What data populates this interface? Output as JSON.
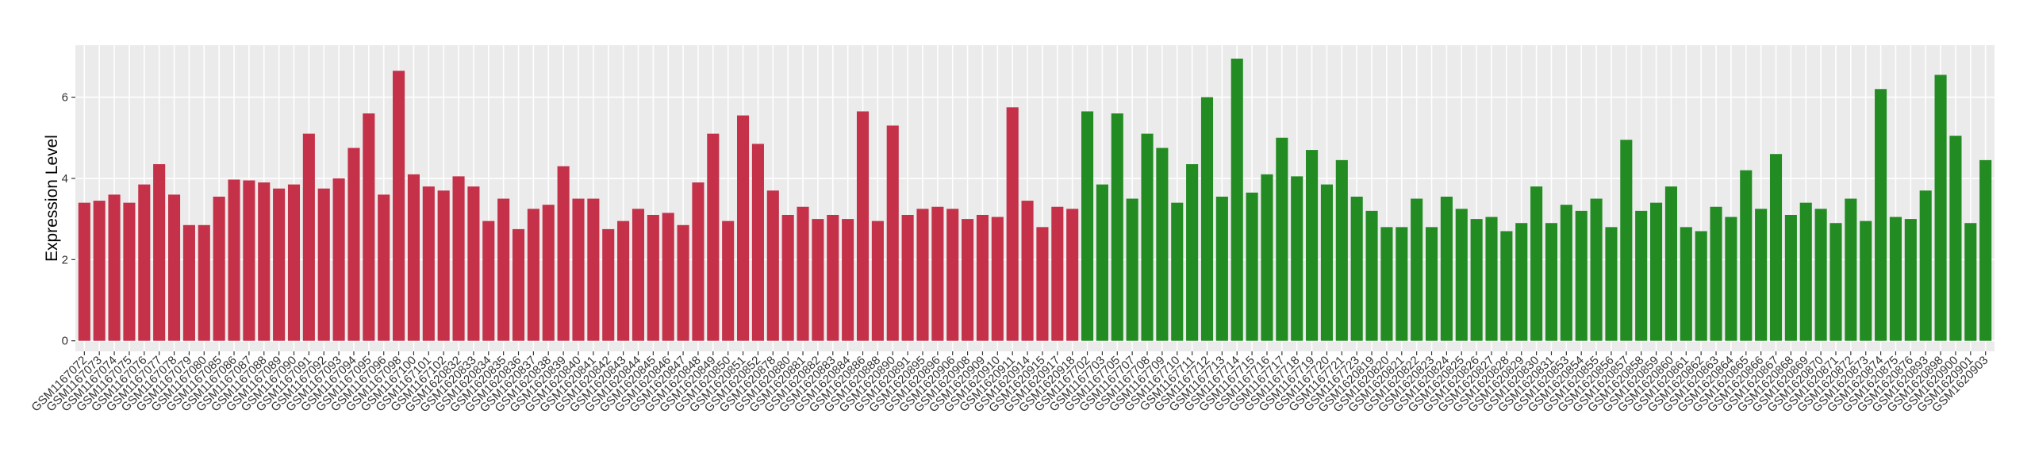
{
  "chart_data": {
    "type": "bar",
    "y_label": "Expression Level",
    "categories": [
      "GSM1167072",
      "GSM1167073",
      "GSM1167074",
      "GSM1167075",
      "GSM1167076",
      "GSM1167077",
      "GSM1167078",
      "GSM1167079",
      "GSM1167080",
      "GSM1167085",
      "GSM1167086",
      "GSM1167087",
      "GSM1167088",
      "GSM1167089",
      "GSM1167090",
      "GSM1167091",
      "GSM1167092",
      "GSM1167093",
      "GSM1167094",
      "GSM1167095",
      "GSM1167096",
      "GSM1167098",
      "GSM1167100",
      "GSM1167101",
      "GSM1167102",
      "GSM1620832",
      "GSM1620833",
      "GSM1620834",
      "GSM1620835",
      "GSM1620836",
      "GSM1620837",
      "GSM1620838",
      "GSM1620839",
      "GSM1620840",
      "GSM1620841",
      "GSM1620842",
      "GSM1620843",
      "GSM1620844",
      "GSM1620845",
      "GSM1620846",
      "GSM1620847",
      "GSM1620848",
      "GSM1620849",
      "GSM1620850",
      "GSM1620851",
      "GSM1620852",
      "GSM1620878",
      "GSM1620880",
      "GSM1620881",
      "GSM1620882",
      "GSM1620883",
      "GSM1620884",
      "GSM1620886",
      "GSM1620888",
      "GSM1620890",
      "GSM1620891",
      "GSM1620895",
      "GSM1620896",
      "GSM1620906",
      "GSM1620908",
      "GSM1620909",
      "GSM1620910",
      "GSM1620911",
      "GSM1620914",
      "GSM1620915",
      "GSM1620917",
      "GSM1620918",
      "GSM1167702",
      "GSM1167703",
      "GSM1167705",
      "GSM1167707",
      "GSM1167708",
      "GSM1167709",
      "GSM1167710",
      "GSM1167711",
      "GSM1167712",
      "GSM1167713",
      "GSM1167714",
      "GSM1167715",
      "GSM1167716",
      "GSM1167717",
      "GSM1167718",
      "GSM1167719",
      "GSM1167720",
      "GSM1167721",
      "GSM1167723",
      "GSM1620819",
      "GSM1620820",
      "GSM1620821",
      "GSM1620822",
      "GSM1620823",
      "GSM1620824",
      "GSM1620825",
      "GSM1620826",
      "GSM1620827",
      "GSM1620828",
      "GSM1620829",
      "GSM1620830",
      "GSM1620831",
      "GSM1620853",
      "GSM1620854",
      "GSM1620855",
      "GSM1620856",
      "GSM1620857",
      "GSM1620858",
      "GSM1620859",
      "GSM1620860",
      "GSM1620861",
      "GSM1620862",
      "GSM1620863",
      "GSM1620864",
      "GSM1620865",
      "GSM1620866",
      "GSM1620867",
      "GSM1620868",
      "GSM1620869",
      "GSM1620870",
      "GSM1620871",
      "GSM1620872",
      "GSM1620873",
      "GSM1620874",
      "GSM1620875",
      "GSM1620876",
      "GSM1620893",
      "GSM1620898",
      "GSM1620900",
      "GSM1620901",
      "GSM1620903"
    ],
    "values": [
      3.4,
      3.45,
      3.6,
      3.4,
      3.85,
      4.35,
      3.6,
      2.85,
      2.85,
      3.55,
      3.97,
      3.95,
      3.9,
      3.75,
      3.85,
      5.1,
      3.75,
      4.0,
      4.75,
      5.6,
      3.6,
      6.65,
      4.1,
      3.8,
      3.7,
      4.05,
      3.8,
      2.95,
      3.5,
      2.75,
      3.25,
      3.35,
      4.3,
      3.5,
      3.5,
      2.75,
      2.95,
      3.25,
      3.1,
      3.15,
      2.85,
      3.9,
      5.1,
      2.95,
      5.55,
      4.85,
      3.7,
      3.1,
      3.3,
      3.0,
      3.1,
      3.0,
      5.65,
      2.95,
      5.3,
      3.1,
      3.25,
      3.3,
      3.25,
      3.0,
      3.1,
      3.05,
      5.75,
      3.45,
      2.8,
      3.3,
      3.25,
      5.65,
      3.85,
      5.6,
      3.5,
      5.1,
      4.75,
      3.4,
      4.35,
      6.0,
      3.55,
      6.95,
      3.65,
      4.1,
      5.0,
      4.05,
      4.7,
      3.85,
      4.45,
      3.55,
      3.2,
      2.8,
      2.8,
      3.5,
      2.8,
      3.55,
      3.25,
      3.0,
      3.05,
      2.7,
      2.9,
      3.8,
      2.9,
      3.35,
      3.2,
      3.5,
      2.8,
      4.95,
      3.2,
      3.4,
      3.8,
      2.8,
      2.7,
      3.3,
      3.05,
      4.2,
      3.25,
      4.6,
      3.1,
      3.4,
      3.25,
      2.9,
      3.5,
      2.95,
      6.2,
      3.05,
      3.0,
      3.7,
      6.55,
      5.05,
      2.9,
      4.45
    ],
    "colors": [
      "#c43149",
      "#c43149",
      "#c43149",
      "#c43149",
      "#c43149",
      "#c43149",
      "#c43149",
      "#c43149",
      "#c43149",
      "#c43149",
      "#c43149",
      "#c43149",
      "#c43149",
      "#c43149",
      "#c43149",
      "#c43149",
      "#c43149",
      "#c43149",
      "#c43149",
      "#c43149",
      "#c43149",
      "#c43149",
      "#c43149",
      "#c43149",
      "#c43149",
      "#c43149",
      "#c43149",
      "#c43149",
      "#c43149",
      "#c43149",
      "#c43149",
      "#c43149",
      "#c43149",
      "#c43149",
      "#c43149",
      "#c43149",
      "#c43149",
      "#c43149",
      "#c43149",
      "#c43149",
      "#c43149",
      "#c43149",
      "#c43149",
      "#c43149",
      "#c43149",
      "#c43149",
      "#c43149",
      "#c43149",
      "#c43149",
      "#c43149",
      "#c43149",
      "#c43149",
      "#c43149",
      "#c43149",
      "#c43149",
      "#c43149",
      "#c43149",
      "#c43149",
      "#c43149",
      "#c43149",
      "#c43149",
      "#c43149",
      "#c43149",
      "#c43149",
      "#c43149",
      "#c43149",
      "#c43149",
      "#228b22",
      "#228b22",
      "#228b22",
      "#228b22",
      "#228b22",
      "#228b22",
      "#228b22",
      "#228b22",
      "#228b22",
      "#228b22",
      "#228b22",
      "#228b22",
      "#228b22",
      "#228b22",
      "#228b22",
      "#228b22",
      "#228b22",
      "#228b22",
      "#228b22",
      "#228b22",
      "#228b22",
      "#228b22",
      "#228b22",
      "#228b22",
      "#228b22",
      "#228b22",
      "#228b22",
      "#228b22",
      "#228b22",
      "#228b22",
      "#228b22",
      "#228b22",
      "#228b22",
      "#228b22",
      "#228b22",
      "#228b22",
      "#228b22",
      "#228b22",
      "#228b22",
      "#228b22",
      "#228b22",
      "#228b22",
      "#228b22",
      "#228b22",
      "#228b22",
      "#228b22",
      "#228b22",
      "#228b22",
      "#228b22",
      "#228b22",
      "#228b22",
      "#228b22",
      "#228b22",
      "#228b22",
      "#228b22",
      "#228b22",
      "#228b22",
      "#228b22",
      "#228b22",
      "#228b22",
      "#228b22",
      "#228b22"
    ],
    "ylim": [
      -0.26,
      7.28
    ],
    "yticks": [
      0,
      2,
      4,
      6
    ],
    "grid": true
  }
}
